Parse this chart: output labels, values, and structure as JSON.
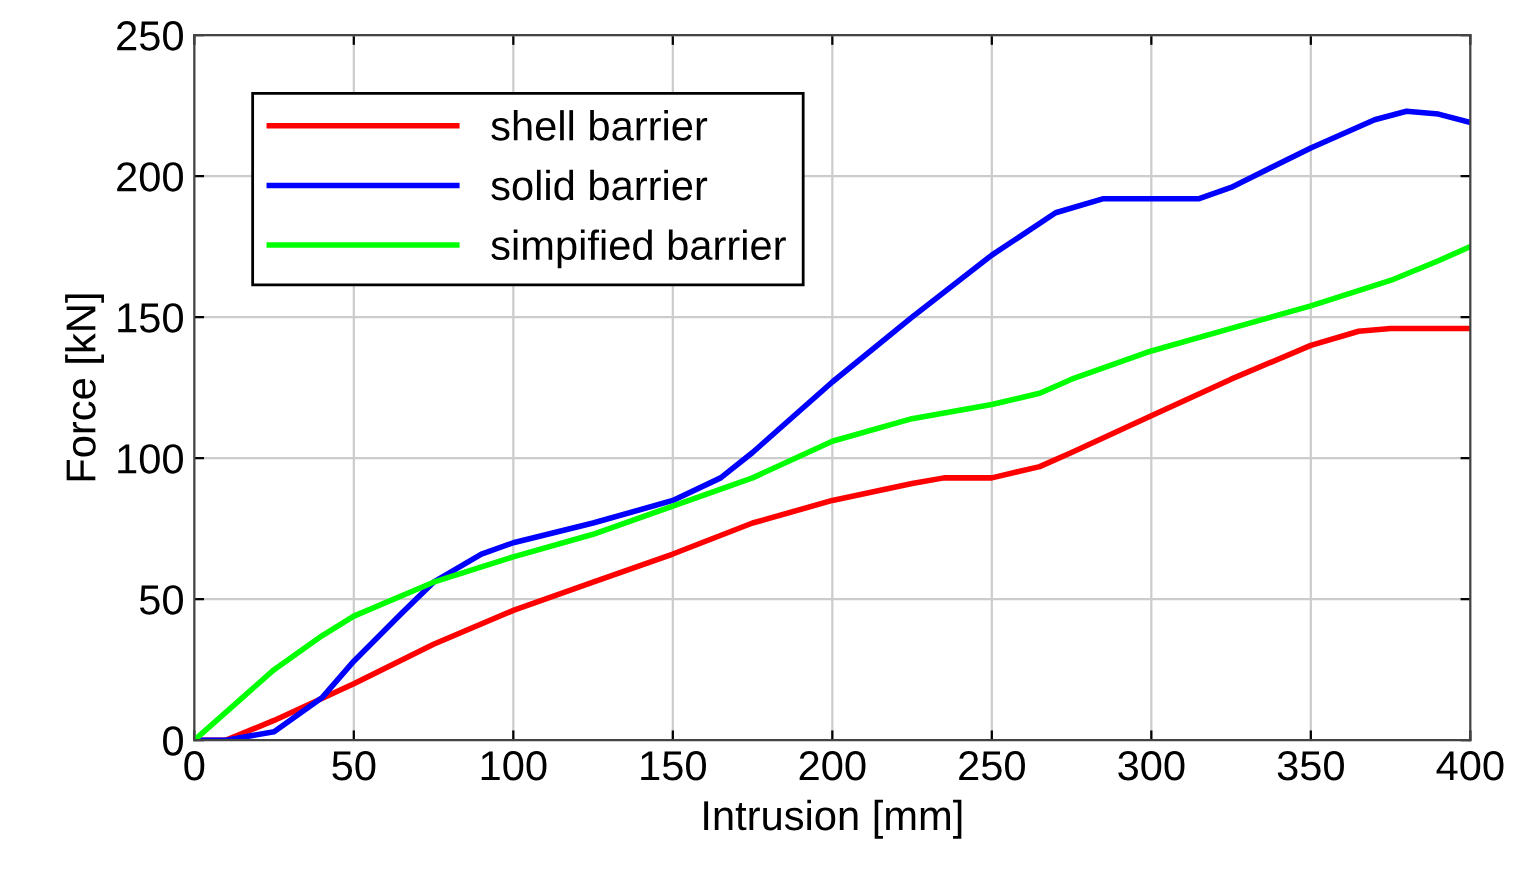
{
  "chart_data": {
    "type": "line",
    "xlabel": "Intrusion [mm]",
    "ylabel": "Force [kN]",
    "xlim": [
      0,
      400
    ],
    "ylim": [
      0,
      250
    ],
    "xticks": [
      0,
      50,
      100,
      150,
      200,
      250,
      300,
      350,
      400
    ],
    "yticks": [
      0,
      50,
      100,
      150,
      200,
      250
    ],
    "grid": true,
    "legend": "top left",
    "series": [
      {
        "name": "shell barrier",
        "color": "#ff0000",
        "x": [
          0,
          10,
          25,
          50,
          75,
          100,
          125,
          150,
          175,
          200,
          225,
          235,
          250,
          265,
          275,
          300,
          325,
          350,
          365,
          375,
          400
        ],
        "values": [
          0,
          0,
          7,
          20,
          34,
          46,
          56,
          66,
          77,
          85,
          91,
          93,
          93,
          97,
          102,
          115,
          128,
          140,
          145,
          146,
          146
        ]
      },
      {
        "name": "solid barrier",
        "color": "#0000ff",
        "x": [
          0,
          10,
          25,
          40,
          50,
          65,
          75,
          90,
          100,
          125,
          150,
          165,
          175,
          200,
          225,
          250,
          270,
          285,
          300,
          315,
          325,
          350,
          370,
          380,
          390,
          400
        ],
        "values": [
          0,
          0,
          3,
          15,
          28,
          45,
          56,
          66,
          70,
          77,
          85,
          93,
          102,
          127,
          150,
          172,
          187,
          192,
          192,
          192,
          196,
          210,
          220,
          223,
          222,
          219
        ]
      },
      {
        "name": "simpified barrier",
        "color": "#00ff00",
        "x": [
          0,
          15,
          25,
          40,
          50,
          75,
          100,
          125,
          150,
          175,
          200,
          225,
          250,
          265,
          275,
          300,
          325,
          350,
          375,
          390,
          400
        ],
        "values": [
          0,
          15,
          25,
          37,
          44,
          56,
          65,
          73,
          83,
          93,
          106,
          114,
          119,
          123,
          128,
          138,
          146,
          154,
          163,
          170,
          175
        ]
      }
    ]
  }
}
